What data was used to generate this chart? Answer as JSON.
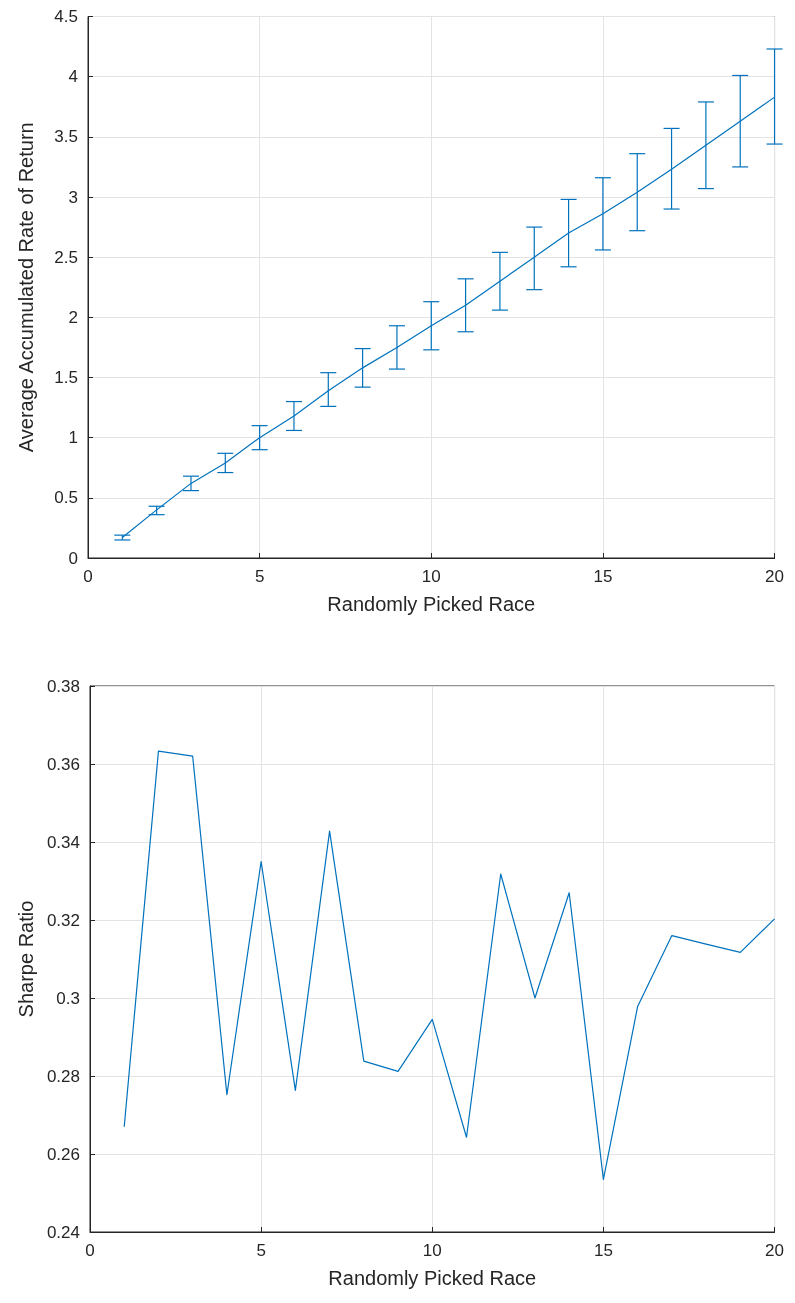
{
  "chart_data": [
    {
      "type": "line",
      "xlabel": "Randomly Picked Race",
      "ylabel": "Average Accumulated Rate of Return",
      "x": [
        1,
        2,
        3,
        4,
        5,
        6,
        7,
        8,
        9,
        10,
        11,
        12,
        13,
        14,
        15,
        16,
        17,
        18,
        19,
        20
      ],
      "xlim": [
        0,
        20
      ],
      "xticks": [
        0,
        5,
        10,
        15,
        20
      ],
      "ylim": [
        0,
        4.5
      ],
      "yticks": [
        0,
        0.5,
        1,
        1.5,
        2,
        2.5,
        3,
        3.5,
        4,
        4.5
      ],
      "grid": true,
      "marker": "none",
      "line_style": "solid",
      "series": [
        {
          "color": "#0072bd",
          "values": [
            0.17,
            0.4,
            0.62,
            0.79,
            1.0,
            1.18,
            1.39,
            1.58,
            1.75,
            1.93,
            2.1,
            2.3,
            2.5,
            2.7,
            2.86,
            3.04,
            3.23,
            3.43,
            3.63,
            3.83
          ],
          "errors": [
            [
              0.15,
              0.19
            ],
            [
              0.36,
              0.43
            ],
            [
              0.56,
              0.68
            ],
            [
              0.71,
              0.87
            ],
            [
              0.9,
              1.1
            ],
            [
              1.06,
              1.3
            ],
            [
              1.26,
              1.54
            ],
            [
              1.42,
              1.74
            ],
            [
              1.57,
              1.93
            ],
            [
              1.73,
              2.13
            ],
            [
              1.88,
              2.32
            ],
            [
              2.06,
              2.54
            ],
            [
              2.23,
              2.75
            ],
            [
              2.42,
              2.98
            ],
            [
              2.56,
              3.16
            ],
            [
              2.72,
              3.36
            ],
            [
              2.9,
              3.57
            ],
            [
              3.07,
              3.79
            ],
            [
              3.25,
              4.01
            ],
            [
              3.44,
              4.23
            ]
          ]
        }
      ]
    },
    {
      "type": "line",
      "xlabel": "Randomly Picked Race",
      "ylabel": "Sharpe Ratio",
      "x": [
        1,
        2,
        3,
        4,
        5,
        6,
        7,
        8,
        9,
        10,
        11,
        12,
        13,
        14,
        15,
        16,
        17,
        18,
        19,
        20
      ],
      "xlim": [
        0,
        20
      ],
      "xticks": [
        0,
        5,
        10,
        15,
        20
      ],
      "ylim": [
        0.24,
        0.38
      ],
      "yticks": [
        {
          "value": 0.24,
          "label": "0.24"
        },
        {
          "value": 0.26,
          "label": "0.26"
        },
        {
          "value": 0.28,
          "label": "0.28"
        },
        {
          "value": 0.3,
          "label": "0.3"
        },
        {
          "value": 0.32,
          "label": "0.32"
        },
        {
          "value": 0.34,
          "label": "0.34"
        },
        {
          "value": 0.36,
          "label": "0.36"
        },
        {
          "value": 0.38,
          "label": "0.38"
        }
      ],
      "grid": true,
      "marker": "none",
      "line_style": "solid",
      "series": [
        {
          "color": "#0072bd",
          "values": [
            0.267,
            0.3633,
            0.362,
            0.2752,
            0.335,
            0.2763,
            0.3428,
            0.2838,
            0.2812,
            0.2945,
            0.2643,
            0.3318,
            0.3,
            0.327,
            0.2535,
            0.2978,
            0.316,
            0.3138,
            0.3117,
            0.3203
          ]
        }
      ]
    }
  ]
}
